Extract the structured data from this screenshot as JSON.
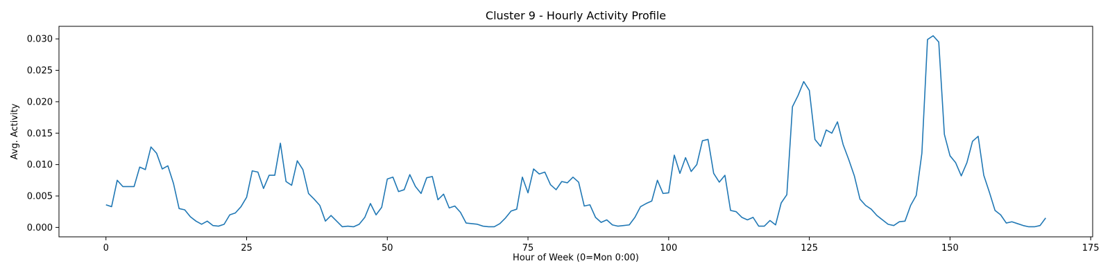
{
  "chart_data": {
    "type": "line",
    "title": "Cluster 9 - Hourly Activity Profile",
    "xlabel": "Hour of Week (0=Mon 0:00)",
    "ylabel": "Avg. Activity",
    "xlim": [
      -8.35,
      175.35
    ],
    "ylim": [
      -0.0015,
      0.032
    ],
    "xticks": [
      0,
      25,
      50,
      75,
      100,
      125,
      150,
      175
    ],
    "yticks": [
      0.0,
      0.005,
      0.01,
      0.015,
      0.02,
      0.025,
      0.03
    ],
    "ytick_labels": [
      "0.000",
      "0.005",
      "0.010",
      "0.015",
      "0.020",
      "0.025",
      "0.030"
    ],
    "grid": false,
    "colors": {
      "line": "#1f77b4",
      "axes": "#000000"
    },
    "series": [
      {
        "values": [
          0.0036,
          0.0033,
          0.0075,
          0.0065,
          0.0065,
          0.0065,
          0.0096,
          0.0092,
          0.0128,
          0.0118,
          0.0093,
          0.0098,
          0.007,
          0.003,
          0.0028,
          0.0017,
          0.001,
          0.0005,
          0.001,
          0.0003,
          0.0002,
          0.0005,
          0.002,
          0.0023,
          0.0033,
          0.0048,
          0.009,
          0.0088,
          0.0062,
          0.0083,
          0.0083,
          0.0134,
          0.0073,
          0.0067,
          0.0106,
          0.0092,
          0.0054,
          0.0045,
          0.0035,
          0.001,
          0.0019,
          0.001,
          0.0001,
          0.0002,
          0.0001,
          0.0005,
          0.0016,
          0.0038,
          0.002,
          0.0032,
          0.0077,
          0.008,
          0.0057,
          0.006,
          0.0084,
          0.0065,
          0.0054,
          0.0079,
          0.0081,
          0.0044,
          0.0053,
          0.0031,
          0.0034,
          0.0024,
          0.0007,
          0.0006,
          0.0005,
          0.0002,
          0.0001,
          0.0001,
          0.0006,
          0.0015,
          0.0026,
          0.0029,
          0.008,
          0.0055,
          0.0093,
          0.0085,
          0.0088,
          0.0068,
          0.006,
          0.0073,
          0.0071,
          0.008,
          0.0072,
          0.0034,
          0.0036,
          0.0016,
          0.0008,
          0.0012,
          0.0004,
          0.0002,
          0.0003,
          0.0004,
          0.0016,
          0.0033,
          0.0038,
          0.0042,
          0.0075,
          0.0054,
          0.0055,
          0.0115,
          0.0086,
          0.0111,
          0.0089,
          0.01,
          0.0138,
          0.014,
          0.0086,
          0.0072,
          0.0083,
          0.0027,
          0.0025,
          0.0016,
          0.0012,
          0.0016,
          0.0002,
          0.0002,
          0.0011,
          0.0004,
          0.0039,
          0.0052,
          0.0192,
          0.021,
          0.0232,
          0.0218,
          0.014,
          0.0129,
          0.0155,
          0.015,
          0.0168,
          0.0132,
          0.0108,
          0.0082,
          0.0045,
          0.0035,
          0.0029,
          0.0019,
          0.0012,
          0.0005,
          0.0003,
          0.0009,
          0.001,
          0.0035,
          0.0051,
          0.0118,
          0.0299,
          0.0305,
          0.0295,
          0.0148,
          0.0114,
          0.0103,
          0.0082,
          0.0103,
          0.0137,
          0.0145,
          0.0083,
          0.0056,
          0.0027,
          0.002,
          0.0007,
          0.0009,
          0.0006,
          0.0003,
          0.0001,
          0.0001,
          0.0003,
          0.0015
        ]
      }
    ]
  }
}
